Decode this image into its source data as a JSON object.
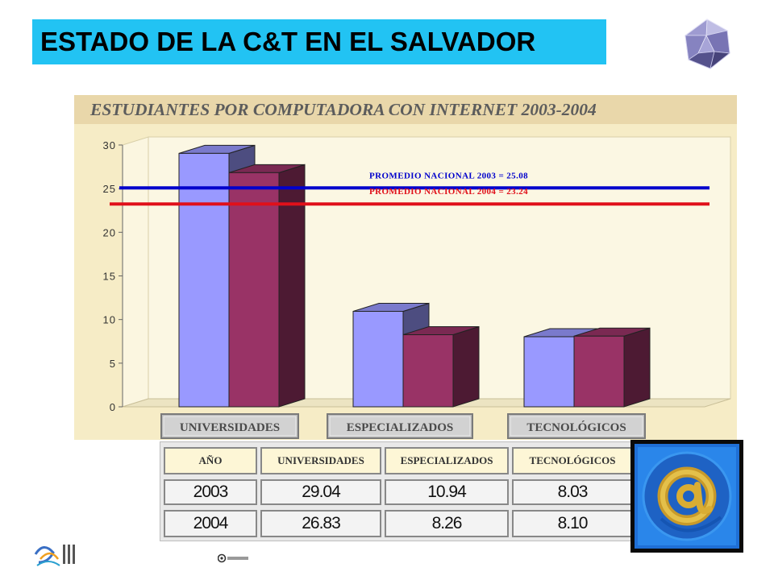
{
  "slide_title": "ESTADO DE LA C&T EN EL SALVADOR",
  "chart_data": {
    "type": "bar",
    "title": "ESTUDIANTES POR COMPUTADORA CON INTERNET 2003-2004",
    "categories": [
      "UNIVERSIDADES",
      "ESPECIALIZADOS",
      "TECNOLÓGICOS"
    ],
    "series": [
      {
        "values": [
          29.04,
          10.94,
          8.03
        ],
        "color": "#9999ff"
      },
      {
        "values": [
          26.83,
          8.26,
          8.1
        ],
        "color": "#993366"
      }
    ],
    "ylim": [
      0,
      30
    ],
    "yticks": [
      "0",
      "5",
      "10",
      "15",
      "20",
      "25",
      "30"
    ],
    "reference_lines": [
      {
        "label": "PROMEDIO NACIONAL 2003 = 25.08",
        "value": 25.08,
        "color": "#0000cc"
      },
      {
        "label": "PROMEDIO NACIONAL 2004 = 23.24",
        "value": 23.24,
        "color": "#e0101a"
      }
    ],
    "grid": false,
    "legend": "none"
  },
  "table": {
    "headers": [
      "AÑO",
      "UNIVERSIDADES",
      "ESPECIALIZADOS",
      "TECNOLÓGICOS"
    ],
    "rows": [
      [
        "2003",
        "29.04",
        "10.94",
        "8.03"
      ],
      [
        "2004",
        "26.83",
        "8.26",
        "8.10"
      ]
    ]
  },
  "icons": {
    "top_right": "polyhedron-gem-icon",
    "bottom_right": "at-sign-icon",
    "bottom_left": "institution-logo-icon",
    "bottom_small": "small-logo-icon"
  }
}
